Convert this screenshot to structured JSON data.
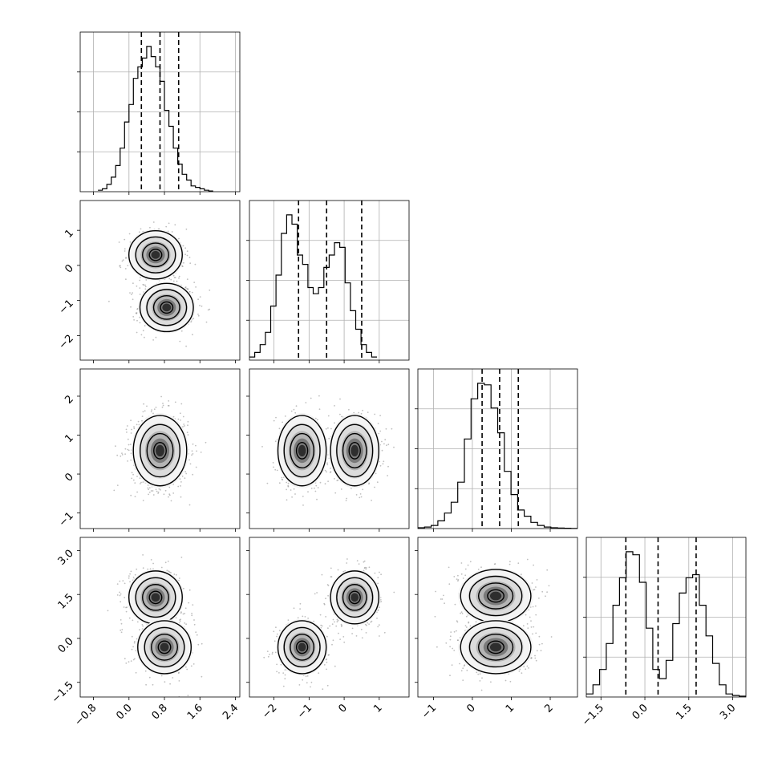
{
  "chart_data": {
    "type": "corner",
    "dimensions": 4,
    "grid": true,
    "colors": {
      "line": "#000000",
      "grid": "#b0b0b0",
      "scatter": "#8a8a8a"
    },
    "quantile_lines": [
      [
        0.28,
        0.7,
        1.12
      ],
      [
        -1.3,
        -0.5,
        0.5
      ],
      [
        0.25,
        0.7,
        1.18
      ],
      [
        -0.65,
        0.45,
        1.75
      ]
    ],
    "ranges": [
      [
        -1.1,
        2.5
      ],
      [
        -2.7,
        1.85
      ],
      [
        -1.4,
        2.7
      ],
      [
        -2.0,
        3.45
      ]
    ],
    "tick_labels": [
      [
        "−0.8",
        "0.0",
        "0.8",
        "1.6",
        "2.4"
      ],
      [
        "−2",
        "−1",
        "0",
        "1"
      ],
      [
        "−1",
        "0",
        "1",
        "2"
      ],
      [
        "−1.5",
        "0.0",
        "1.5",
        "3.0"
      ]
    ],
    "tick_values": [
      [
        -0.8,
        0.0,
        0.8,
        1.6,
        2.4
      ],
      [
        -2,
        -1,
        0,
        1
      ],
      [
        -1,
        0,
        1,
        2
      ],
      [
        -1.5,
        0.0,
        1.5,
        3.0
      ]
    ],
    "marginals": [
      {
        "edges_start": -0.7,
        "bin": 0.1,
        "counts": [
          0.01,
          0.02,
          0.05,
          0.1,
          0.18,
          0.3,
          0.48,
          0.6,
          0.78,
          0.86,
          0.92,
          1.0,
          0.93,
          0.86,
          0.76,
          0.56,
          0.45,
          0.3,
          0.19,
          0.12,
          0.08,
          0.04,
          0.03,
          0.02,
          0.01,
          0.005
        ]
      },
      {
        "edges_start": -2.7,
        "bin": 0.1515,
        "counts": [
          0.02,
          0.05,
          0.1,
          0.18,
          0.35,
          0.55,
          0.82,
          0.94,
          0.88,
          0.68,
          0.62,
          0.47,
          0.43,
          0.47,
          0.6,
          0.68,
          0.76,
          0.73,
          0.5,
          0.32,
          0.2,
          0.1,
          0.05,
          0.02
        ]
      },
      {
        "edges_start": -1.4,
        "bin": 0.1708,
        "counts": [
          0.005,
          0.01,
          0.02,
          0.05,
          0.1,
          0.17,
          0.3,
          0.58,
          0.84,
          0.94,
          0.93,
          0.78,
          0.62,
          0.37,
          0.22,
          0.12,
          0.08,
          0.04,
          0.02,
          0.01,
          0.005,
          0.003,
          0.002,
          0.001
        ]
      },
      {
        "edges_start": -2.0,
        "bin": 0.227,
        "counts": [
          0.02,
          0.08,
          0.18,
          0.35,
          0.6,
          0.78,
          0.95,
          0.93,
          0.75,
          0.45,
          0.18,
          0.12,
          0.24,
          0.48,
          0.68,
          0.78,
          0.8,
          0.6,
          0.4,
          0.22,
          0.08,
          0.02,
          0.01,
          0.005
        ]
      }
    ],
    "modes": [
      {
        "w": 0.5,
        "mean": [
          0.6,
          0.3,
          0.6,
          1.4
        ],
        "sd": [
          0.28,
          0.32,
          0.42,
          0.42
        ]
      },
      {
        "w": 0.5,
        "mean": [
          0.85,
          -1.2,
          0.6,
          -0.3
        ],
        "sd": [
          0.28,
          0.32,
          0.42,
          0.42
        ]
      }
    ],
    "pair_modes": {
      "1-0": [
        [
          0.6,
          0.3
        ],
        [
          0.85,
          -1.2
        ]
      ],
      "2-0": [
        [
          0.7,
          0.6
        ]
      ],
      "2-1": [
        [
          -1.2,
          0.6
        ],
        [
          0.3,
          0.6
        ]
      ],
      "3-0": [
        [
          0.6,
          1.4
        ],
        [
          0.8,
          -0.3
        ]
      ],
      "3-1": [
        [
          -1.2,
          -0.3
        ],
        [
          0.3,
          1.4
        ]
      ],
      "3-2": [
        [
          0.6,
          1.45
        ],
        [
          0.6,
          -0.3
        ]
      ]
    }
  }
}
